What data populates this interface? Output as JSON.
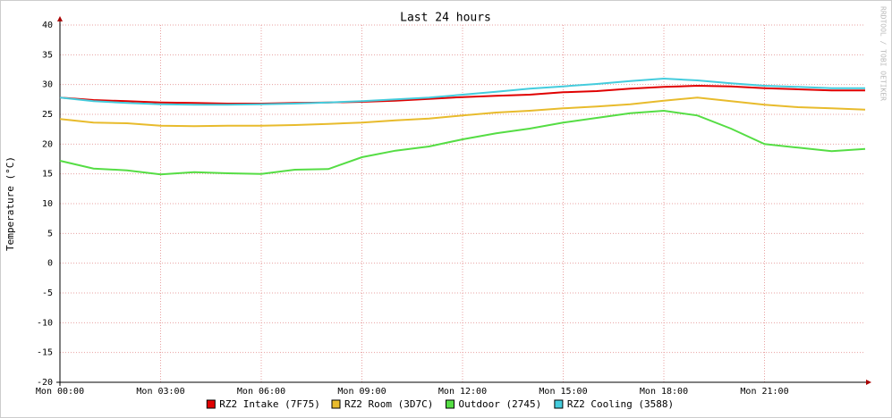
{
  "chart_data": {
    "type": "line",
    "title": "Last 24 hours",
    "y_label": "Temperature (°C)",
    "watermark": "RRDTOOL / TOBI OETIKER",
    "x": [
      0,
      1,
      2,
      3,
      4,
      5,
      6,
      7,
      8,
      9,
      10,
      11,
      12,
      13,
      14,
      15,
      16,
      17,
      18,
      19,
      20,
      21,
      22,
      23,
      24
    ],
    "xlim": [
      0,
      24
    ],
    "xticks": [
      {
        "value": 0,
        "label": "Mon 00:00"
      },
      {
        "value": 3,
        "label": "Mon 03:00"
      },
      {
        "value": 6,
        "label": "Mon 06:00"
      },
      {
        "value": 9,
        "label": "Mon 09:00"
      },
      {
        "value": 12,
        "label": "Mon 12:00"
      },
      {
        "value": 15,
        "label": "Mon 15:00"
      },
      {
        "value": 18,
        "label": "Mon 18:00"
      },
      {
        "value": 21,
        "label": "Mon 21:00"
      }
    ],
    "ylim": [
      -20,
      40
    ],
    "yticks": [
      -20,
      -15,
      -10,
      -5,
      0,
      5,
      10,
      15,
      20,
      25,
      30,
      35,
      40
    ],
    "grid": true,
    "legend": "bottom",
    "series": [
      {
        "name": "RZ2 Intake (7F75)",
        "color": "#e00000",
        "values": [
          27.8,
          27.4,
          27.2,
          27.0,
          26.9,
          26.8,
          26.8,
          26.9,
          27.0,
          27.1,
          27.3,
          27.6,
          27.9,
          28.1,
          28.3,
          28.7,
          28.9,
          29.3,
          29.6,
          29.8,
          29.7,
          29.4,
          29.2,
          29.0,
          29.0
        ]
      },
      {
        "name": "RZ2 Room (3D7C)",
        "color": "#e8bb2c",
        "values": [
          24.2,
          23.6,
          23.5,
          23.1,
          23.0,
          23.1,
          23.1,
          23.2,
          23.4,
          23.6,
          24.0,
          24.3,
          24.8,
          25.3,
          25.6,
          26.0,
          26.3,
          26.7,
          27.3,
          27.8,
          27.2,
          26.6,
          26.2,
          26.0,
          25.8
        ]
      },
      {
        "name": "Outdoor (2745)",
        "color": "#55dd44",
        "values": [
          17.2,
          15.9,
          15.6,
          14.9,
          15.3,
          15.1,
          15.0,
          15.7,
          15.8,
          17.8,
          18.9,
          19.6,
          20.8,
          21.8,
          22.6,
          23.6,
          24.4,
          25.2,
          25.6,
          24.8,
          22.6,
          20.0,
          19.4,
          18.8,
          19.2
        ]
      },
      {
        "name": "RZ2 Cooling (3588)",
        "color": "#44ccdd",
        "values": [
          27.8,
          27.2,
          26.9,
          26.7,
          26.6,
          26.6,
          26.7,
          26.8,
          27.0,
          27.2,
          27.5,
          27.8,
          28.3,
          28.8,
          29.3,
          29.7,
          30.1,
          30.6,
          31.0,
          30.7,
          30.2,
          29.8,
          29.6,
          29.4,
          29.4
        ]
      }
    ]
  }
}
